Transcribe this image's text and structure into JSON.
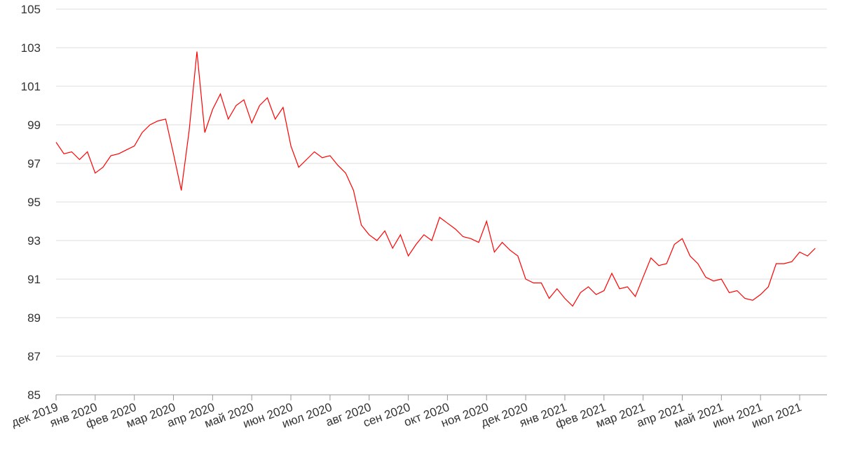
{
  "chart_data": {
    "type": "line",
    "categories": [
      "дек 2019",
      null,
      null,
      null,
      null,
      "янв 2020",
      null,
      null,
      null,
      null,
      "фев 2020",
      null,
      null,
      null,
      null,
      "мар 2020",
      null,
      null,
      null,
      null,
      "апр 2020",
      null,
      null,
      null,
      null,
      "май 2020",
      null,
      null,
      null,
      null,
      "июн 2020",
      null,
      null,
      null,
      null,
      "июл 2020",
      null,
      null,
      null,
      null,
      "авг 2020",
      null,
      null,
      null,
      null,
      "сен 2020",
      null,
      null,
      null,
      null,
      "окт 2020",
      null,
      null,
      null,
      null,
      "ноя 2020",
      null,
      null,
      null,
      null,
      "дек 2020",
      null,
      null,
      null,
      null,
      "янв 2021",
      null,
      null,
      null,
      null,
      "фев 2021",
      null,
      null,
      null,
      null,
      "мар 2021",
      null,
      null,
      null,
      null,
      "апр 2021",
      null,
      null,
      null,
      null,
      "май 2021",
      null,
      null,
      null,
      null,
      "июн 2021",
      null,
      null,
      null,
      null,
      "июл 2021",
      null,
      null
    ],
    "series": [
      {
        "color": "#ff0000",
        "values": [
          98.1,
          97.5,
          97.6,
          97.2,
          97.6,
          96.5,
          96.8,
          97.4,
          97.5,
          97.7,
          97.9,
          98.6,
          99.0,
          99.2,
          99.3,
          97.5,
          95.6,
          98.7,
          102.8,
          98.6,
          99.8,
          100.6,
          99.3,
          100.0,
          100.3,
          99.1,
          100.0,
          100.4,
          99.3,
          99.9,
          97.9,
          96.8,
          97.2,
          97.6,
          97.3,
          97.4,
          96.9,
          96.5,
          95.6,
          93.8,
          93.3,
          93.0,
          93.5,
          92.6,
          93.3,
          92.2,
          92.8,
          93.3,
          93.0,
          94.2,
          93.9,
          93.6,
          93.2,
          93.1,
          92.9,
          94.0,
          92.4,
          92.9,
          92.5,
          92.2,
          91.0,
          90.8,
          90.8,
          90.0,
          90.5,
          90.0,
          89.6,
          90.3,
          90.6,
          90.2,
          90.4,
          91.3,
          90.5,
          90.6,
          90.1,
          91.1,
          92.1,
          91.7,
          91.8,
          92.8,
          93.1,
          92.2,
          91.8,
          91.1,
          90.9,
          91.0,
          90.3,
          90.4,
          90.0,
          89.9,
          90.2,
          90.6,
          91.8,
          91.8,
          91.9,
          92.4,
          92.2,
          92.6
        ]
      }
    ],
    "ylim": [
      85,
      105
    ],
    "yticks": [
      85,
      87,
      89,
      91,
      93,
      95,
      97,
      99,
      101,
      103,
      105
    ],
    "grid": true
  }
}
